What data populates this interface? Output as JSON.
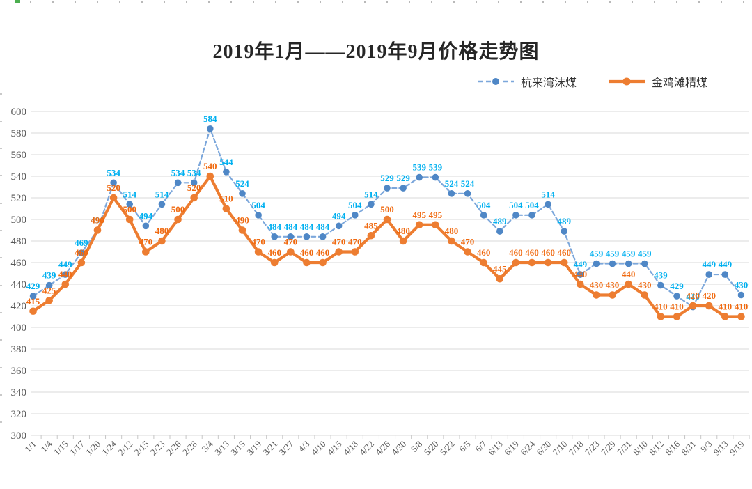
{
  "chart_data": {
    "type": "line",
    "title": "2019年1月——2019年9月价格走势图",
    "categories": [
      "1/1",
      "1/4",
      "1/15",
      "1/17",
      "1/20",
      "1/24",
      "2/12",
      "2/15",
      "2/23",
      "2/26",
      "2/28",
      "3/4",
      "3/13",
      "3/15",
      "3/19",
      "3/21",
      "3/27",
      "4/3",
      "4/10",
      "4/15",
      "4/18",
      "4/22",
      "4/26",
      "4/30",
      "5/8",
      "5/20",
      "5/22",
      "6/5",
      "6/7",
      "6/13",
      "6/19",
      "6/24",
      "6/30",
      "7/10",
      "7/18",
      "7/23",
      "7/29",
      "7/31",
      "8/10",
      "8/12",
      "8/16",
      "8/31",
      "9/3",
      "9/13",
      "9/19"
    ],
    "series": [
      {
        "name": "杭来湾沫煤",
        "style": "dashed",
        "line_color": "#7ca7db",
        "marker_color": "#4f87c6",
        "label_color": "#00b0f0",
        "values": [
          429,
          439,
          449,
          469,
          490,
          534,
          514,
          494,
          514,
          534,
          534,
          584,
          544,
          524,
          504,
          484,
          484,
          484,
          484,
          494,
          504,
          514,
          529,
          529,
          539,
          539,
          524,
          524,
          504,
          489,
          504,
          504,
          514,
          489,
          449,
          459,
          459,
          459,
          459,
          439,
          429,
          419,
          449,
          449,
          430
        ]
      },
      {
        "name": "金鸡滩精煤",
        "style": "solid",
        "line_color": "#ed7d31",
        "marker_color": "#ed7d31",
        "label_color": "#f0690f",
        "values": [
          415,
          425,
          440,
          460,
          490,
          520,
          500,
          470,
          480,
          500,
          520,
          540,
          510,
          490,
          470,
          460,
          470,
          460,
          460,
          470,
          470,
          485,
          500,
          480,
          495,
          495,
          480,
          470,
          460,
          445,
          460,
          460,
          460,
          460,
          440,
          430,
          430,
          440,
          430,
          410,
          410,
          420,
          420,
          410,
          410
        ]
      }
    ],
    "ylim": [
      300,
      600
    ],
    "ytick_step": 20,
    "grid": true,
    "grid_color": "#d9d9d9",
    "tick_color": "#c6c6c6",
    "axis_label_color": "#595959",
    "legend_position": "top-right"
  }
}
